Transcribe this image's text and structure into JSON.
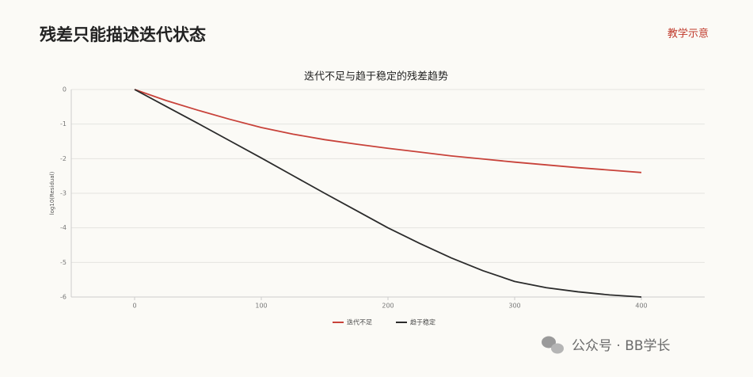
{
  "header": {
    "title": "残差只能描述迭代状态",
    "tag": "教学示意"
  },
  "watermark": "公众号 · BB学长",
  "chart_data": {
    "type": "line",
    "title": "迭代不足与趋于稳定的残差趋势",
    "y_label": "log10(Residual)",
    "x": [
      0,
      25,
      50,
      75,
      100,
      125,
      150,
      175,
      200,
      225,
      250,
      275,
      300,
      325,
      350,
      375,
      400
    ],
    "series": [
      {
        "name": "迭代不足",
        "color": "#c8423a",
        "values": [
          0,
          -0.32,
          -0.6,
          -0.86,
          -1.1,
          -1.29,
          -1.45,
          -1.58,
          -1.7,
          -1.81,
          -1.92,
          -2.01,
          -2.1,
          -2.18,
          -2.26,
          -2.33,
          -2.4
        ]
      },
      {
        "name": "趋于稳定",
        "color": "#2b2b2b",
        "values": [
          0,
          -0.49,
          -0.98,
          -1.48,
          -1.98,
          -2.49,
          -3.0,
          -3.5,
          -4.0,
          -4.45,
          -4.87,
          -5.24,
          -5.55,
          -5.73,
          -5.85,
          -5.94,
          -6.0
        ]
      }
    ],
    "xlim": [
      -50,
      450
    ],
    "xticks": [
      0,
      100,
      200,
      300,
      400
    ],
    "ylim": [
      -6,
      0
    ],
    "yticks": [
      0,
      -1,
      -2,
      -3,
      -4,
      -5,
      -6
    ],
    "grid": true,
    "legend": "bottom"
  }
}
